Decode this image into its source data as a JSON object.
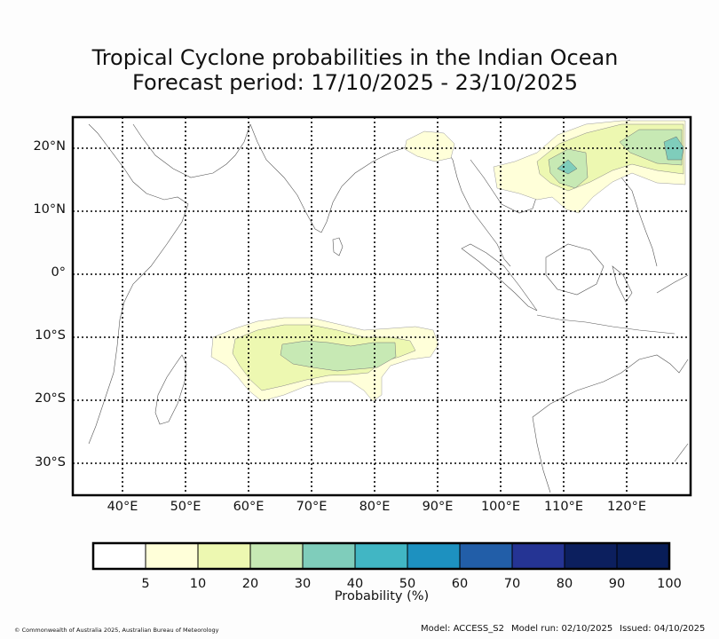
{
  "title": {
    "line1": "Tropical Cyclone probabilities in the Indian Ocean",
    "line2": "Forecast period: 17/10/2025 - 23/10/2025"
  },
  "map": {
    "lat_labels": [
      "20°N",
      "10°N",
      "0°",
      "10°S",
      "20°S",
      "30°S"
    ],
    "lon_labels": [
      "40°E",
      "50°E",
      "60°E",
      "70°E",
      "80°E",
      "90°E",
      "100°E",
      "110°E",
      "120°E"
    ]
  },
  "colorbar": {
    "title": "Probability (%)",
    "ticks": [
      "5",
      "10",
      "20",
      "30",
      "40",
      "50",
      "60",
      "70",
      "80",
      "90",
      "100"
    ],
    "colors": [
      "#ffffff",
      "#ffffd9",
      "#edf8b1",
      "#c7e9b4",
      "#7fcdbb",
      "#41b6c4",
      "#1d91c0",
      "#225ea8",
      "#253494",
      "#0c1f5e",
      "#081d58"
    ]
  },
  "footer": {
    "copyright": "© Commonwealth of Australia 2025, Australian Bureau of Meteorology",
    "model": "Model: ACCESS_S2",
    "model_run": "Model run: 02/10/2025",
    "issued": "Issued: 04/10/2025"
  }
}
